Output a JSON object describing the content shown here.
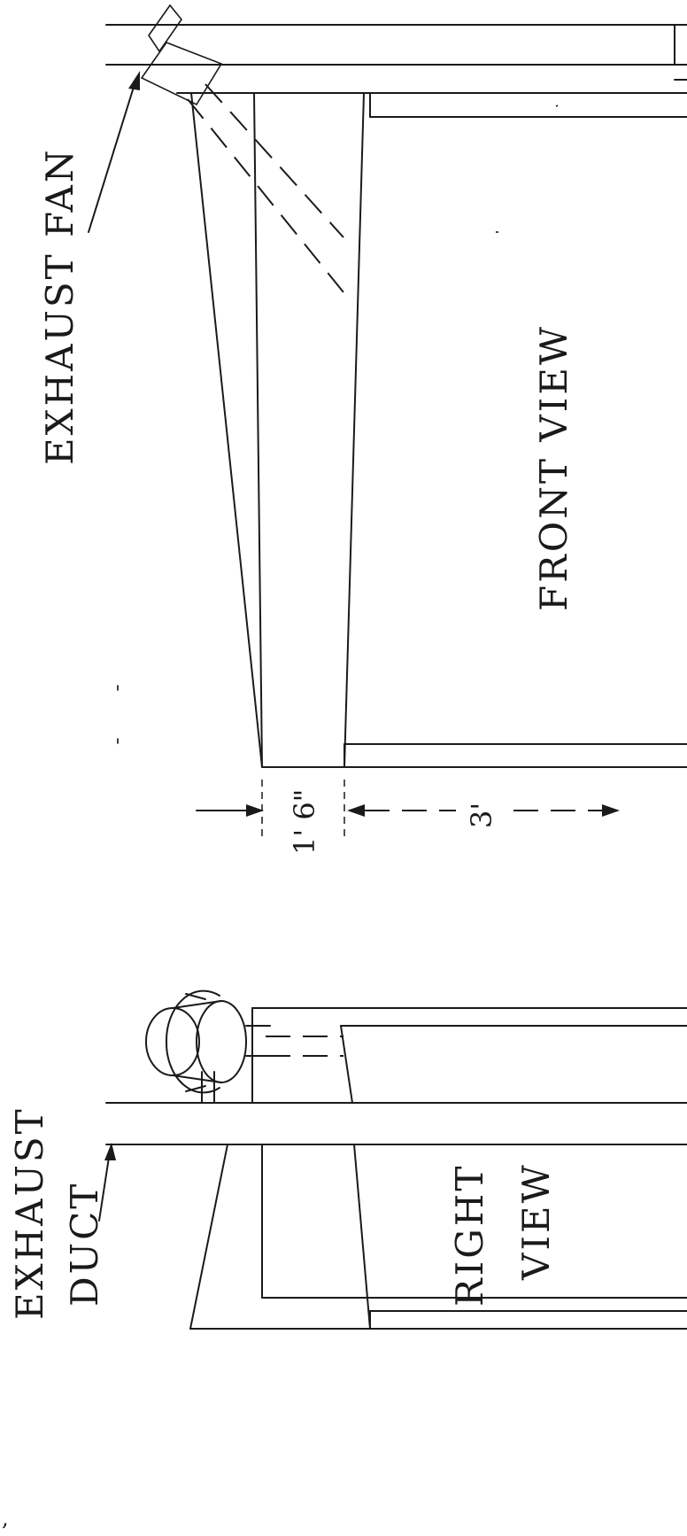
{
  "labels": {
    "exhaust_fan": "EXHAUST FAN",
    "front_view": "FRONT VIEW",
    "exhaust": "EXHAUST",
    "duct": "DUCT",
    "right": "RIGHT",
    "view": "VIEW"
  },
  "dimensions": {
    "tilt_offset": "1' 6\"",
    "depth": "3'"
  }
}
